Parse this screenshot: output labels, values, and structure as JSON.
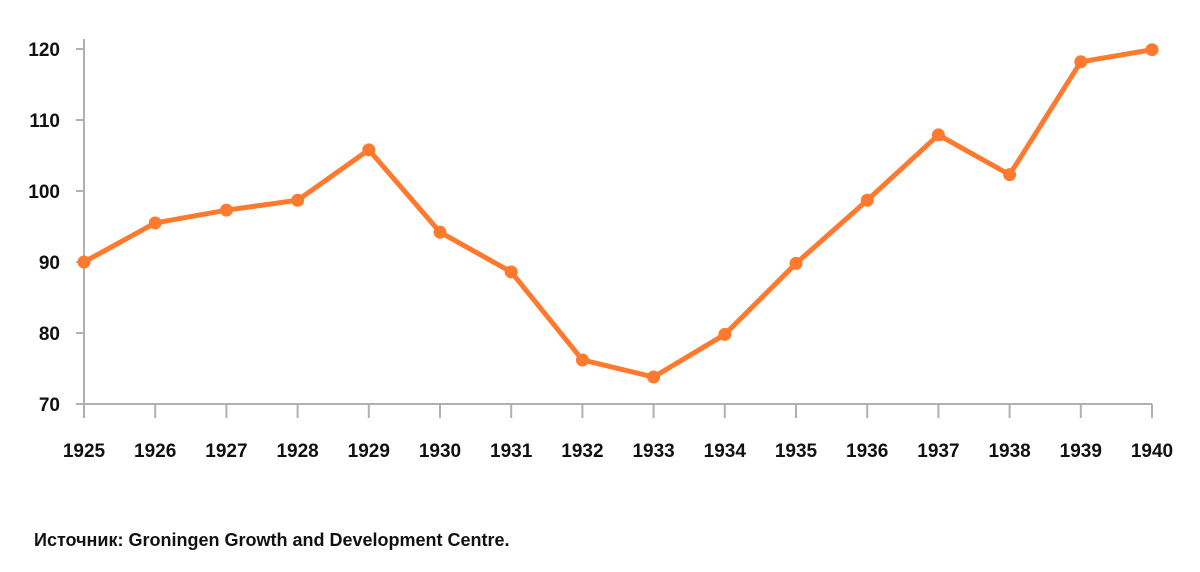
{
  "chart_data": {
    "type": "line",
    "title": "",
    "xlabel": "",
    "ylabel": "",
    "x": [
      1925,
      1926,
      1927,
      1928,
      1929,
      1930,
      1931,
      1932,
      1933,
      1934,
      1935,
      1936,
      1937,
      1938,
      1939,
      1940
    ],
    "x_labels": [
      "1925",
      "1926",
      "1927",
      "1928",
      "1929",
      "1930",
      "1931",
      "1932",
      "1933",
      "1934",
      "1935",
      "1936",
      "1937",
      "1938",
      "1939",
      "1940"
    ],
    "series": [
      {
        "name": "",
        "values": [
          90,
          95.5,
          97.3,
          98.7,
          105.8,
          94.2,
          88.6,
          76.2,
          73.8,
          79.8,
          89.8,
          98.7,
          107.9,
          102.3,
          118.2,
          119.9
        ]
      }
    ],
    "ylim": [
      70,
      120
    ],
    "yticks": [
      70,
      80,
      90,
      100,
      110,
      120
    ],
    "ytick_labels": [
      "70",
      "80",
      "90",
      "100",
      "110",
      "120"
    ],
    "grid": false,
    "legend": "none",
    "colors": {
      "line": "#FF7A2F",
      "axis": "#B0B0B0",
      "text": "#111111"
    }
  },
  "source": "Источник: Groningen Growth and Development Centre."
}
